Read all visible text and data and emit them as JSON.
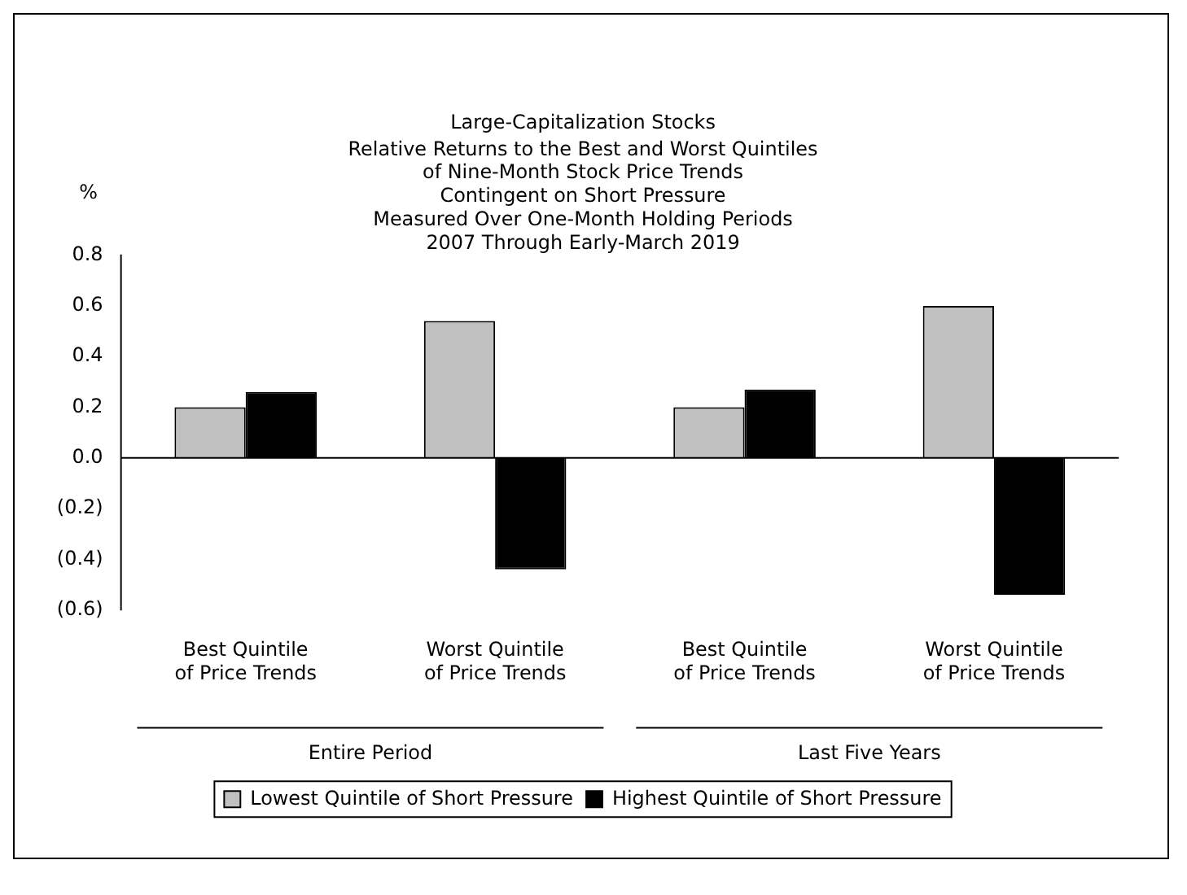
{
  "chart_data": {
    "type": "bar",
    "title": "Large-Capitalization Stocks",
    "subtitle": "Relative Returns to the Best and Worst Quintiles\nof Nine-Month Stock Price Trends\nContingent on Short Pressure\nMeasured Over One-Month Holding Periods\n2007 Through Early-March 2019",
    "ylabel": "%",
    "categories": [
      "Best Quintile of Price Trends",
      "Worst Quintile of Price Trends",
      "Best Quintile of Price Trends",
      "Worst Quintile of Price Trends"
    ],
    "series": [
      {
        "name": "Lowest Quintile of Short Pressure",
        "color": "#c0c0c0",
        "values": [
          0.2,
          0.54,
          0.2,
          0.6
        ]
      },
      {
        "name": "Highest Quintile of Short Pressure",
        "color": "#000000",
        "values": [
          0.26,
          -0.44,
          0.27,
          -0.54
        ]
      }
    ],
    "ylim": [
      -0.6,
      0.8
    ],
    "yticks": [
      {
        "value": -0.6,
        "label": "(0.6)"
      },
      {
        "value": -0.4,
        "label": "(0.4)"
      },
      {
        "value": -0.2,
        "label": "(0.2)"
      },
      {
        "value": 0,
        "label": "0.0"
      },
      0.2,
      0.4,
      0.6,
      0.8
    ],
    "annotations": [
      "Entire Period",
      "Last Five Years"
    ],
    "legend": "bottom"
  }
}
